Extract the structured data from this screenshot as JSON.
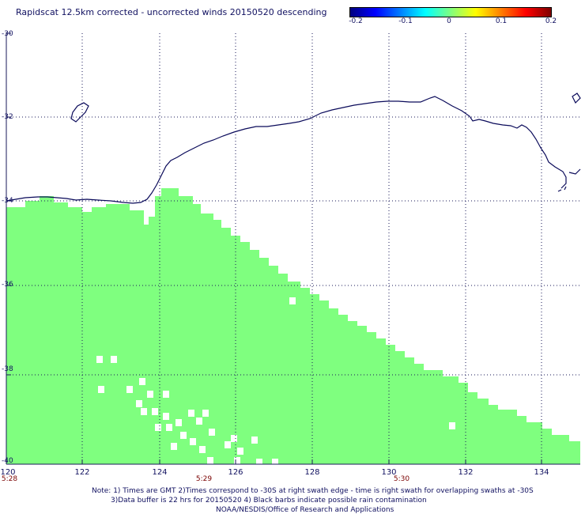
{
  "title": "Rapidscat 12.5km corrected - uncorrected winds 20150520 descending",
  "colorbar": {
    "labels": [
      "-0.2",
      "-0.1",
      "0",
      "0.1",
      "0.2"
    ],
    "colors": [
      "#00007f",
      "#0000ff",
      "#007fff",
      "#00ffff",
      "#7fff7f",
      "#ffff00",
      "#ff7f00",
      "#ff0000",
      "#7f0000"
    ]
  },
  "map": {
    "swath_color": "#7fff7f",
    "coast_color": "#0a0a5a",
    "lat_labels": [
      "-30",
      "-32",
      "-34",
      "-36",
      "-38",
      "-40"
    ],
    "lon_labels": [
      "120",
      "122",
      "124",
      "126",
      "128",
      "130",
      "132",
      "134"
    ],
    "lat_range": [
      -40,
      -30
    ],
    "lon_range": [
      120,
      135
    ]
  },
  "times": [
    "5:28",
    "5:29",
    "5:30"
  ],
  "notes": [
    "Note: 1) Times are GMT 2)Times correspond to -30S at right swath edge - time is right swath for overlapping swaths at -30S",
    "3)Data buffer is 22 hrs for 20150520 4) Black barbs indicate possible rain contamination",
    "NOAA/NESDIS/Office of Research and Applications"
  ]
}
